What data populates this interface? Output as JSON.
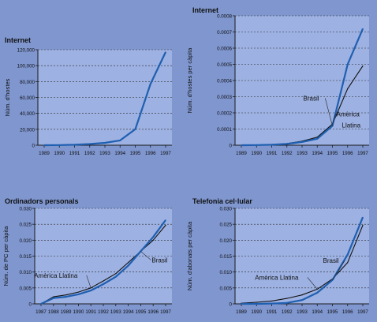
{
  "colors": {
    "background": "#7f96cf",
    "plot_area": "#9db1e2",
    "brasil_line": "#1f5fb0",
    "latam_line": "#111111",
    "axis": "#1a1a1a",
    "grid": "#2b2b2b"
  },
  "chart_data": [
    {
      "type": "line",
      "title": "Internet",
      "xlabel": "",
      "ylabel": "Núm. d'hostes",
      "x": [
        "1989",
        "1990",
        "1991",
        "1992",
        "1993",
        "1994",
        "1995",
        "1996",
        "1997"
      ],
      "ylim": [
        0,
        120000
      ],
      "yticks": [
        "0",
        "20,000",
        "40,000",
        "60,000",
        "80,000",
        "100,000",
        "120,000"
      ],
      "grid": "horizontal dashed",
      "series": [
        {
          "name": "",
          "color": "brasil",
          "values": [
            0,
            200,
            600,
            1500,
            3000,
            6000,
            20000,
            77000,
            117000
          ]
        }
      ]
    },
    {
      "type": "line",
      "title": "Internet",
      "xlabel": "",
      "ylabel": "Núm. d'hostes per càpita",
      "x": [
        "1989",
        "1990",
        "1991",
        "1992",
        "1993",
        "1994",
        "1995",
        "1996",
        "1997"
      ],
      "ylim": [
        0,
        0.0008
      ],
      "yticks": [
        "0",
        "0.0001",
        "0.0002",
        "0.0003",
        "0.0004",
        "0.0005",
        "0.0006",
        "0.0007",
        "0.0008"
      ],
      "grid": "horizontal dashed",
      "series": [
        {
          "name": "Brasil",
          "color": "brasil",
          "values": [
            0,
            1e-06,
            3e-06,
            8e-06,
            2e-05,
            4e-05,
            0.00012,
            0.0005,
            0.00072
          ]
        },
        {
          "name": "Amèrica Llatina",
          "color": "latam",
          "values": [
            0,
            1e-06,
            3e-06,
            1e-05,
            2.5e-05,
            5e-05,
            0.00013,
            0.00035,
            0.00049
          ]
        }
      ],
      "annotations": [
        {
          "text": "Brasil",
          "series": 0,
          "x_index": 6
        },
        {
          "text": "Amèrica",
          "series": 1,
          "x_index": 6
        },
        {
          "text": "Llatina",
          "series": 1,
          "x_index": 6
        }
      ]
    },
    {
      "type": "line",
      "title": "Ordinadors personals",
      "xlabel": "",
      "ylabel": "Núm. de PC per càpita",
      "x": [
        "1987",
        "1988",
        "1989",
        "1990",
        "1991",
        "1992",
        "1993",
        "1994",
        "1995",
        "1996",
        "1997"
      ],
      "ylim": [
        0,
        0.03
      ],
      "yticks": [
        "0",
        "0.005",
        "0.010",
        "0.015",
        "0.020",
        "0.025",
        "0.030"
      ],
      "grid": "horizontal dashed",
      "series": [
        {
          "name": "Brasil",
          "color": "brasil",
          "values": [
            0,
            0.0018,
            0.0022,
            0.003,
            0.0042,
            0.0062,
            0.0085,
            0.012,
            0.0165,
            0.021,
            0.0263
          ]
        },
        {
          "name": "Amèrica Llatina",
          "color": "latam",
          "values": [
            0,
            0.0022,
            0.0028,
            0.0037,
            0.005,
            0.0072,
            0.0095,
            0.013,
            0.0165,
            0.02,
            0.0247
          ]
        }
      ],
      "annotations": [
        {
          "text": "Amèrica Llatina",
          "series": 1,
          "x_index": 4
        },
        {
          "text": "Brasil",
          "series": 0,
          "x_index": 8
        }
      ]
    },
    {
      "type": "line",
      "title": "Telefonia cel·lular",
      "xlabel": "",
      "ylabel": "Núm. d'abonats per càpita",
      "x": [
        "1989",
        "1990",
        "1991",
        "1992",
        "1993",
        "1994",
        "1995",
        "1996",
        "1997"
      ],
      "ylim": [
        0,
        0.03
      ],
      "yticks": [
        "0",
        "0.005",
        "0.010",
        "0.015",
        "0.020",
        "0.025",
        "0.030"
      ],
      "grid": "horizontal dashed",
      "series": [
        {
          "name": "Brasil",
          "color": "brasil",
          "values": [
            0,
            0,
            0.0001,
            0.0003,
            0.0012,
            0.0035,
            0.0075,
            0.0155,
            0.0272
          ]
        },
        {
          "name": "Amèrica Llatina",
          "color": "latam",
          "values": [
            0.0002,
            0.0005,
            0.0009,
            0.0017,
            0.0028,
            0.0046,
            0.0078,
            0.013,
            0.0247
          ]
        }
      ],
      "annotations": [
        {
          "text": "Brasil",
          "series": 0,
          "x_index": 6
        },
        {
          "text": "Amèrica Llatina",
          "series": 1,
          "x_index": 5
        }
      ]
    }
  ]
}
